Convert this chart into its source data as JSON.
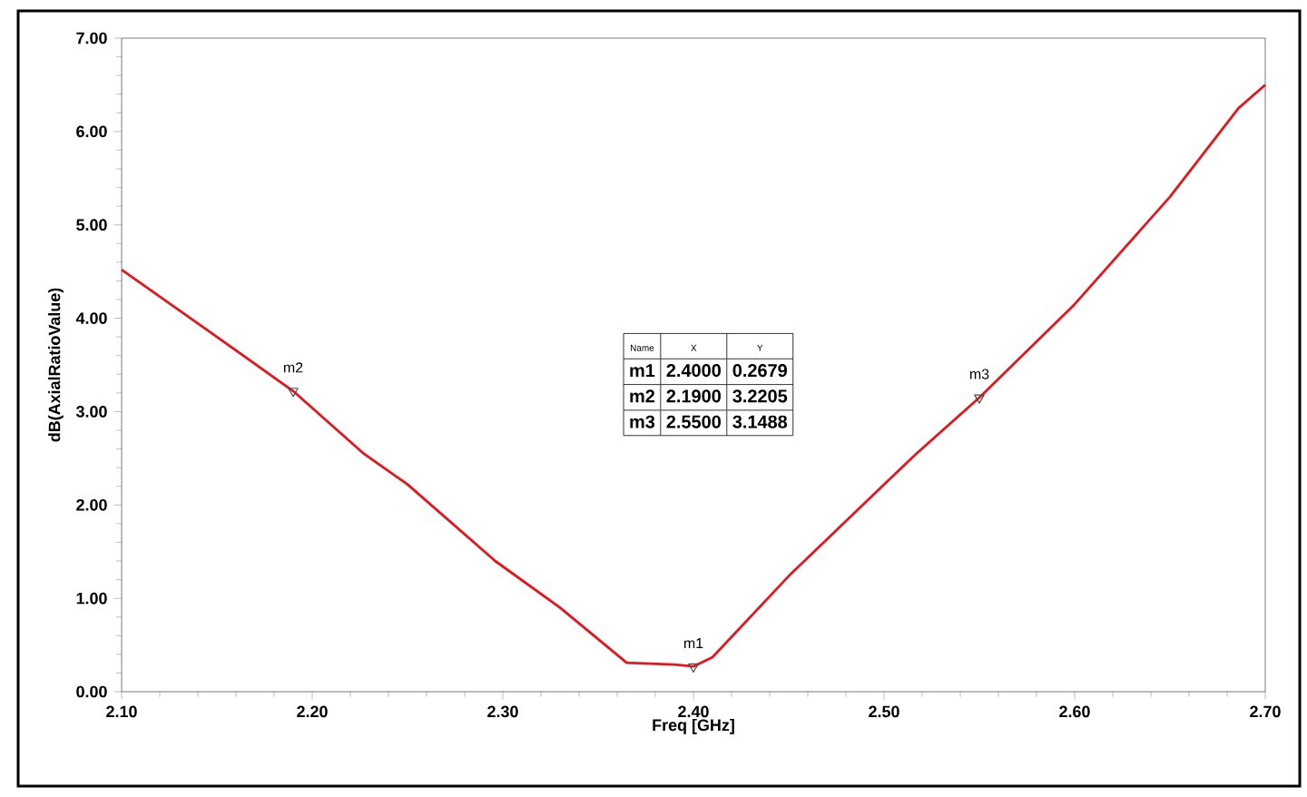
{
  "chart_data": {
    "type": "line",
    "xlabel": "Freq [GHz]",
    "ylabel": "dB(AxialRatioValue)",
    "x": [
      2.1,
      2.15,
      2.19,
      2.227,
      2.25,
      2.296,
      2.33,
      2.365,
      2.39,
      2.4,
      2.41,
      2.451,
      2.5,
      2.517,
      2.55,
      2.6,
      2.65,
      2.686,
      2.7
    ],
    "series": [
      {
        "color": "#e8141c",
        "values": [
          4.52,
          3.8,
          3.22,
          2.55,
          2.22,
          1.4,
          0.9,
          0.31,
          0.29,
          0.27,
          0.37,
          1.26,
          2.22,
          2.55,
          3.15,
          4.15,
          5.3,
          6.25,
          6.5
        ]
      },
      {
        "type": "scatter",
        "x": [
          2.4,
          2.19,
          2.55
        ],
        "color": "#4c4c4c",
        "marker": "triangle",
        "values": [
          0.2679,
          3.2205,
          3.1488
        ]
      }
    ],
    "xlim": [
      2.1,
      2.7
    ],
    "ylim": [
      0,
      7
    ],
    "xticks": [
      {
        "value": 2.1,
        "label": "2.10"
      },
      {
        "value": 2.2,
        "label": "2.20"
      },
      {
        "value": 2.3,
        "label": "2.30"
      },
      {
        "value": 2.4,
        "label": "2.40"
      },
      {
        "value": 2.5,
        "label": "2.50"
      },
      {
        "value": 2.6,
        "label": "2.60"
      },
      {
        "value": 2.7,
        "label": "2.70"
      }
    ],
    "yticks": [
      {
        "value": 0,
        "label": "0.00"
      },
      {
        "value": 1,
        "label": "1.00"
      },
      {
        "value": 2,
        "label": "2.00"
      },
      {
        "value": 3,
        "label": "3.00"
      },
      {
        "value": 4,
        "label": "4.00"
      },
      {
        "value": 5,
        "label": "5.00"
      },
      {
        "value": 6,
        "label": "6.00"
      },
      {
        "value": 7,
        "label": "7.00"
      }
    ],
    "marker": "none",
    "line_style": "solid",
    "annotations": [
      {
        "text": "m1",
        "x": 2.4,
        "y": 0.2679
      },
      {
        "text": "m2",
        "x": 2.19,
        "y": 3.2205
      },
      {
        "text": "m3",
        "x": 2.55,
        "y": 3.1488
      },
      "Name",
      "X",
      "Y",
      "m1",
      "2.4000",
      "0.2679",
      "m2",
      "2.1900",
      "3.2205",
      "m3",
      "2.5500",
      "3.1488"
    ]
  }
}
